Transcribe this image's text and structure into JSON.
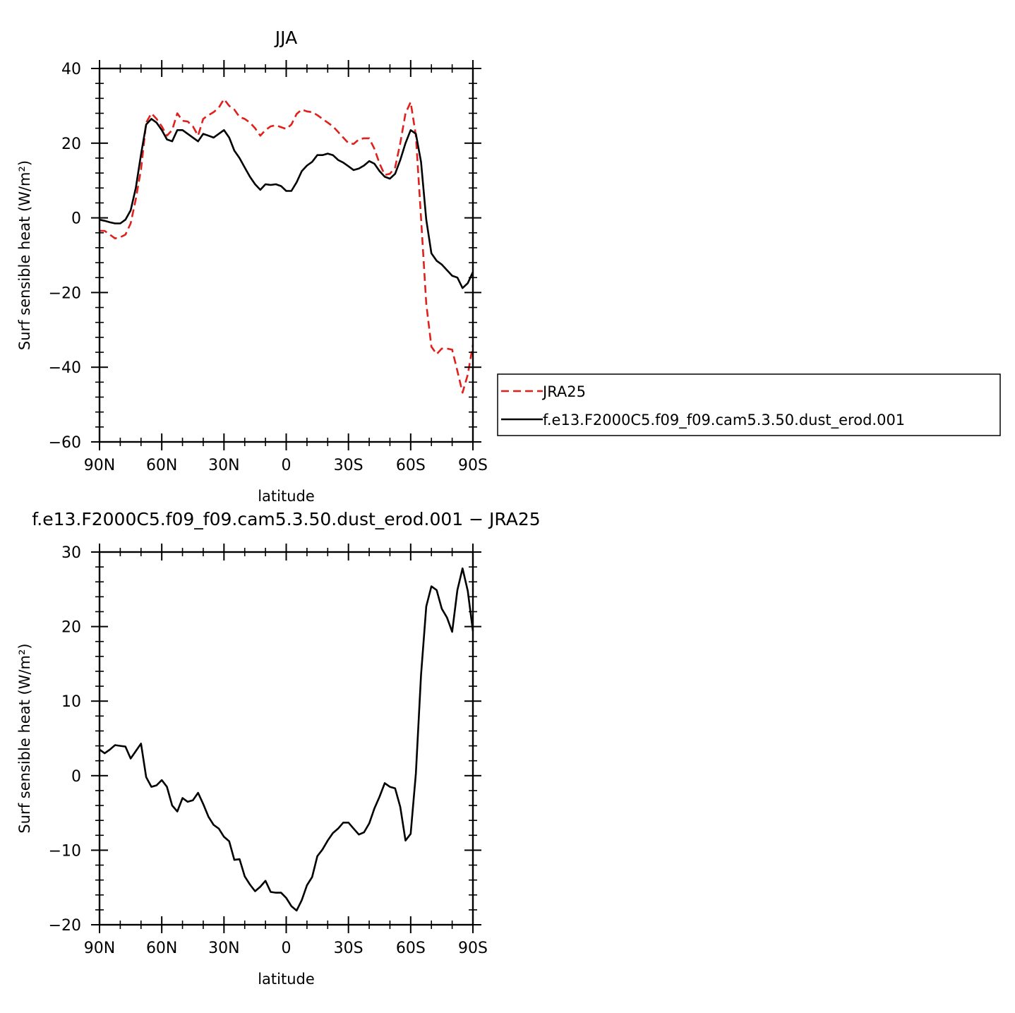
{
  "chart_data": [
    {
      "type": "line",
      "title": "JJA",
      "xlabel": "latitude",
      "ylabel": "Surf sensible heat (W/m²)",
      "xlim": [
        -90,
        90
      ],
      "ylim": [
        -60,
        40
      ],
      "x_ticks": [
        -90,
        -60,
        -30,
        0,
        30,
        60,
        90
      ],
      "x_tick_labels": [
        "90N",
        "60N",
        "30N",
        "0",
        "30S",
        "60S",
        "90S"
      ],
      "y_ticks": [
        -60,
        -40,
        -20,
        0,
        20,
        40
      ],
      "y_tick_labels": [
        "−60",
        "−40",
        "−20",
        "0",
        "20",
        "40"
      ],
      "legend_position": "right",
      "series": [
        {
          "name": "JRA25",
          "color": "#e0201c",
          "dashed": true,
          "points": [
            [
              -90,
              -3.5
            ],
            [
              -87.5,
              -3.5
            ],
            [
              -85,
              -4.5
            ],
            [
              -82.5,
              -5.5
            ],
            [
              -80,
              -5.2
            ],
            [
              -77.5,
              -4.5
            ],
            [
              -75,
              -1.5
            ],
            [
              -72.5,
              5
            ],
            [
              -70,
              13
            ],
            [
              -67.5,
              25.5
            ],
            [
              -65,
              28
            ],
            [
              -62.5,
              26.5
            ],
            [
              -60,
              24.5
            ],
            [
              -57.5,
              22
            ],
            [
              -55,
              23.5
            ],
            [
              -52.5,
              28
            ],
            [
              -50,
              26
            ],
            [
              -47.5,
              25.8
            ],
            [
              -45,
              24.5
            ],
            [
              -42.5,
              22
            ],
            [
              -40,
              26.5
            ],
            [
              -37.5,
              27.5
            ],
            [
              -35,
              28.3
            ],
            [
              -32.5,
              29.5
            ],
            [
              -30,
              31.8
            ],
            [
              -27.5,
              30
            ],
            [
              -25,
              29
            ],
            [
              -22.5,
              27
            ],
            [
              -20,
              26.5
            ],
            [
              -17.5,
              25.5
            ],
            [
              -15,
              24
            ],
            [
              -12.5,
              22
            ],
            [
              -10,
              23.5
            ],
            [
              -7.5,
              24.5
            ],
            [
              -5,
              24.8
            ],
            [
              -2.5,
              24.3
            ],
            [
              0,
              23.8
            ],
            [
              2.5,
              25
            ],
            [
              5,
              27.8
            ],
            [
              7.5,
              29
            ],
            [
              10,
              28.5
            ],
            [
              12.5,
              28.3
            ],
            [
              15,
              27.5
            ],
            [
              17.5,
              26.5
            ],
            [
              20,
              25.5
            ],
            [
              22.5,
              24.5
            ],
            [
              25,
              23
            ],
            [
              27.5,
              21.5
            ],
            [
              30,
              20
            ],
            [
              32.5,
              19.8
            ],
            [
              35,
              21
            ],
            [
              37.5,
              21.3
            ],
            [
              40,
              21.3
            ],
            [
              42.5,
              18.5
            ],
            [
              45,
              14.5
            ],
            [
              47.5,
              11.5
            ],
            [
              50,
              11.8
            ],
            [
              52.5,
              13.5
            ],
            [
              55,
              20
            ],
            [
              57.5,
              28
            ],
            [
              60,
              31
            ],
            [
              62.5,
              22
            ],
            [
              65,
              0
            ],
            [
              67.5,
              -23
            ],
            [
              70,
              -34.5
            ],
            [
              72.5,
              -36.5
            ],
            [
              75,
              -35
            ],
            [
              77.5,
              -35
            ],
            [
              80,
              -35.3
            ],
            [
              82.5,
              -41
            ],
            [
              85,
              -46.8
            ],
            [
              87.5,
              -42
            ],
            [
              90,
              -34
            ]
          ]
        },
        {
          "name": "f.e13.F2000C5.f09_f09.cam5.3.50.dust_erod.001",
          "color": "#000000",
          "dashed": false,
          "points": [
            [
              -90,
              -0.5
            ],
            [
              -87.5,
              -0.8
            ],
            [
              -85,
              -1.2
            ],
            [
              -82.5,
              -1.5
            ],
            [
              -80,
              -1.5
            ],
            [
              -77.5,
              -0.5
            ],
            [
              -75,
              2
            ],
            [
              -72.5,
              8
            ],
            [
              -70,
              17
            ],
            [
              -67.5,
              25
            ],
            [
              -65,
              26.5
            ],
            [
              -62.5,
              25.5
            ],
            [
              -60,
              23.5
            ],
            [
              -57.5,
              21
            ],
            [
              -55,
              20.5
            ],
            [
              -52.5,
              23.5
            ],
            [
              -50,
              23.5
            ],
            [
              -47.5,
              22.5
            ],
            [
              -45,
              21.5
            ],
            [
              -42.5,
              20.5
            ],
            [
              -40,
              22.5
            ],
            [
              -37.5,
              22
            ],
            [
              -35,
              21.5
            ],
            [
              -32.5,
              22.5
            ],
            [
              -30,
              23.5
            ],
            [
              -27.5,
              21.5
            ],
            [
              -25,
              18
            ],
            [
              -22.5,
              16
            ],
            [
              -20,
              13.5
            ],
            [
              -17.5,
              11
            ],
            [
              -15,
              9
            ],
            [
              -12.5,
              7.5
            ],
            [
              -10,
              9
            ],
            [
              -7.5,
              8.8
            ],
            [
              -5,
              9
            ],
            [
              -2.5,
              8.5
            ],
            [
              0,
              7.2
            ],
            [
              2.5,
              7.2
            ],
            [
              5,
              9.5
            ],
            [
              7.5,
              12.5
            ],
            [
              10,
              14
            ],
            [
              12.5,
              15
            ],
            [
              15,
              16.8
            ],
            [
              17.5,
              16.8
            ],
            [
              20,
              17.2
            ],
            [
              22.5,
              16.8
            ],
            [
              25,
              15.5
            ],
            [
              27.5,
              14.8
            ],
            [
              30,
              13.8
            ],
            [
              32.5,
              12.8
            ],
            [
              35,
              13.2
            ],
            [
              37.5,
              14
            ],
            [
              40,
              15.2
            ],
            [
              42.5,
              14.5
            ],
            [
              45,
              12.5
            ],
            [
              47.5,
              11
            ],
            [
              50,
              10.5
            ],
            [
              52.5,
              11.8
            ],
            [
              55,
              15.5
            ],
            [
              57.5,
              20
            ],
            [
              60,
              23.5
            ],
            [
              62.5,
              22.5
            ],
            [
              65,
              15
            ],
            [
              67.5,
              -0.5
            ],
            [
              70,
              -9.5
            ],
            [
              72.5,
              -11.5
            ],
            [
              75,
              -12.5
            ],
            [
              77.5,
              -14
            ],
            [
              80,
              -15.5
            ],
            [
              82.5,
              -16
            ],
            [
              85,
              -18.8
            ],
            [
              87.5,
              -17.5
            ],
            [
              90,
              -14.5
            ]
          ]
        }
      ]
    },
    {
      "type": "line",
      "title": "f.e13.F2000C5.f09_f09.cam5.3.50.dust_erod.001 − JRA25",
      "xlabel": "latitude",
      "ylabel": "Surf sensible heat (W/m²)",
      "xlim": [
        -90,
        90
      ],
      "ylim": [
        -20,
        30
      ],
      "x_ticks": [
        -90,
        -60,
        -30,
        0,
        30,
        60,
        90
      ],
      "x_tick_labels": [
        "90N",
        "60N",
        "30N",
        "0",
        "30S",
        "60S",
        "90S"
      ],
      "y_ticks": [
        -20,
        -10,
        0,
        10,
        20,
        30
      ],
      "y_tick_labels": [
        "−20",
        "−10",
        "0",
        "10",
        "20",
        "30"
      ],
      "series": [
        {
          "name": "",
          "color": "#000000",
          "dashed": false,
          "points": [
            [
              -90,
              3.5
            ],
            [
              -87.5,
              3.0
            ],
            [
              -85,
              3.5
            ],
            [
              -82.5,
              4.1
            ],
            [
              -80,
              4.0
            ],
            [
              -77.5,
              3.9
            ],
            [
              -75,
              2.3
            ],
            [
              -72.5,
              3.3
            ],
            [
              -70,
              4.3
            ],
            [
              -67.5,
              -0.2
            ],
            [
              -65,
              -1.5
            ],
            [
              -62.5,
              -1.3
            ],
            [
              -60,
              -0.6
            ],
            [
              -57.5,
              -1.5
            ],
            [
              -55,
              -4.0
            ],
            [
              -52.5,
              -4.8
            ],
            [
              -50,
              -3.0
            ],
            [
              -47.5,
              -3.5
            ],
            [
              -45,
              -3.3
            ],
            [
              -42.5,
              -2.3
            ],
            [
              -40,
              -3.8
            ],
            [
              -37.5,
              -5.5
            ],
            [
              -35,
              -6.6
            ],
            [
              -32.5,
              -7.1
            ],
            [
              -30,
              -8.2
            ],
            [
              -27.5,
              -8.8
            ],
            [
              -25,
              -11.3
            ],
            [
              -22.5,
              -11.2
            ],
            [
              -20,
              -13.5
            ],
            [
              -17.5,
              -14.6
            ],
            [
              -15,
              -15.5
            ],
            [
              -12.5,
              -14.9
            ],
            [
              -10,
              -14.1
            ],
            [
              -7.5,
              -15.6
            ],
            [
              -5,
              -15.7
            ],
            [
              -2.5,
              -15.7
            ],
            [
              0,
              -16.4
            ],
            [
              2.5,
              -17.5
            ],
            [
              5,
              -18.1
            ],
            [
              7.5,
              -16.7
            ],
            [
              10,
              -14.7
            ],
            [
              12.5,
              -13.6
            ],
            [
              15,
              -10.8
            ],
            [
              17.5,
              -9.9
            ],
            [
              20,
              -8.7
            ],
            [
              22.5,
              -7.7
            ],
            [
              25,
              -7.1
            ],
            [
              27.5,
              -6.3
            ],
            [
              30,
              -6.3
            ],
            [
              32.5,
              -7.1
            ],
            [
              35,
              -7.9
            ],
            [
              37.5,
              -7.6
            ],
            [
              40,
              -6.4
            ],
            [
              42.5,
              -4.4
            ],
            [
              45,
              -2.8
            ],
            [
              47.5,
              -1.0
            ],
            [
              50,
              -1.5
            ],
            [
              52.5,
              -1.7
            ],
            [
              55,
              -4.2
            ],
            [
              57.5,
              -8.7
            ],
            [
              60,
              -7.8
            ],
            [
              62.5,
              0.3
            ],
            [
              65,
              13.5
            ],
            [
              67.5,
              22.7
            ],
            [
              70,
              25.4
            ],
            [
              72.5,
              24.9
            ],
            [
              75,
              22.4
            ],
            [
              77.5,
              21.2
            ],
            [
              80,
              19.3
            ],
            [
              82.5,
              24.9
            ],
            [
              85,
              27.8
            ],
            [
              87.5,
              24.8
            ],
            [
              90,
              19.4
            ]
          ]
        }
      ]
    }
  ]
}
